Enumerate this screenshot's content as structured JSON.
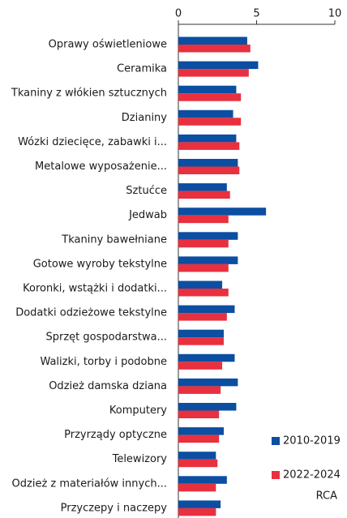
{
  "chart_data": {
    "type": "bar",
    "orientation": "horizontal",
    "categories": [
      "Oprawy oświetleniowe",
      "Ceramika",
      "Tkaniny z włókien sztucznych",
      "Dzianiny",
      "Wózki dziecięce, zabawki i...",
      "Metalowe wyposażenie...",
      "Sztućce",
      "Jedwab",
      "Tkaniny bawełniane",
      "Gotowe wyroby tekstylne",
      "Koronki, wstążki i dodatki...",
      "Dodatki odzieżowe tekstylne",
      "Sprzęt gospodarstwa...",
      "Walizki, torby i podobne",
      "Odzież damska dziana",
      "Komputery",
      "Przyrządy optyczne",
      "Telewizory",
      "Odzież z materiałów innych...",
      "Przyczepy i naczepy"
    ],
    "series": [
      {
        "name": "2010-2019",
        "color": "#0b4ea2",
        "values": [
          4.4,
          5.1,
          3.7,
          3.5,
          3.7,
          3.8,
          3.1,
          5.6,
          3.8,
          3.8,
          2.8,
          3.6,
          2.9,
          3.6,
          3.8,
          3.7,
          2.9,
          2.4,
          3.1,
          2.7
        ]
      },
      {
        "name": "2022-2024",
        "color": "#e8303f",
        "values": [
          4.6,
          4.5,
          4.0,
          4.0,
          3.9,
          3.9,
          3.3,
          3.2,
          3.2,
          3.2,
          3.2,
          3.1,
          2.9,
          2.8,
          2.7,
          2.6,
          2.6,
          2.5,
          2.4,
          2.4
        ]
      }
    ],
    "annotation": "RCA",
    "xlim": [
      0,
      10
    ],
    "xticks": [
      0,
      5,
      10
    ]
  }
}
